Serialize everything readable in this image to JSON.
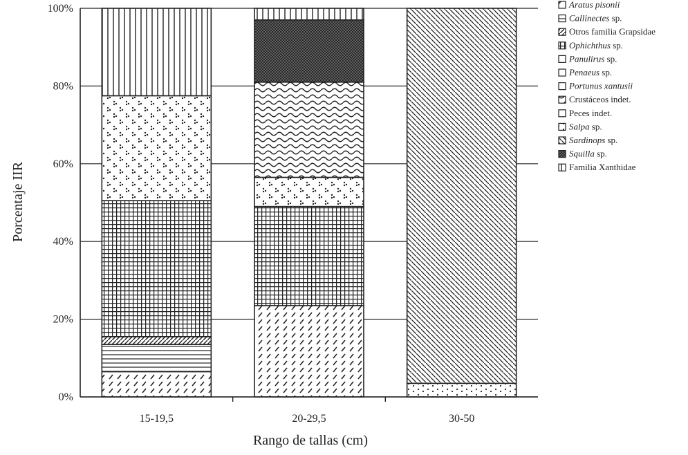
{
  "chart_data": {
    "type": "bar",
    "stacked": true,
    "title": "",
    "xlabel": "Rango de tallas (cm)",
    "ylabel": "Porcentaje IIR",
    "ylim": [
      0,
      100
    ],
    "ytick_labels": [
      "0%",
      "20%",
      "40%",
      "60%",
      "80%",
      "100%"
    ],
    "grid": "horizontal",
    "legend_position": "right",
    "categories": [
      "15-19,5",
      "20-29,5",
      "30-50"
    ],
    "series": [
      {
        "name": "Aratus pisonii",
        "italic_part": "Aratus pisonii",
        "suffix": "",
        "pattern": "dashes",
        "values": [
          6.5,
          23.5,
          0
        ]
      },
      {
        "name": "Callinectes sp.",
        "italic_part": "Callinectes",
        "suffix": " sp.",
        "pattern": "hlines",
        "values": [
          7.0,
          0,
          0
        ]
      },
      {
        "name": "Otros familia Grapsidae",
        "italic_part": "",
        "suffix": "Otros familia Grapsidae",
        "pattern": "diag",
        "values": [
          2.0,
          0,
          0
        ]
      },
      {
        "name": "Ophichthus sp.",
        "italic_part": "Ophichthus",
        "suffix": " sp.",
        "pattern": "grid",
        "values": [
          35.0,
          25.5,
          0
        ]
      },
      {
        "name": "Panulirus sp.",
        "italic_part": "Panulirus",
        "suffix": " sp.",
        "pattern": "dots",
        "values": [
          27.0,
          7.5,
          0
        ]
      },
      {
        "name": "Penaeus sp.",
        "italic_part": "Penaeus",
        "suffix": " sp.",
        "pattern": "none",
        "values": [
          0,
          0,
          0
        ]
      },
      {
        "name": "Portunus xantusii",
        "italic_part": "Portunus xantusii",
        "suffix": "",
        "pattern": "none",
        "values": [
          0,
          0,
          0
        ]
      },
      {
        "name": "Crustáceos indet.",
        "italic_part": "",
        "suffix": "Crustáceos indet.",
        "pattern": "waves",
        "values": [
          0,
          24.5,
          0
        ]
      },
      {
        "name": "Peces indet.",
        "italic_part": "",
        "suffix": "Peces indet.",
        "pattern": "none",
        "values": [
          0,
          0,
          0
        ]
      },
      {
        "name": "Salpa sp.",
        "italic_part": "Salpa",
        "suffix": " sp.",
        "pattern": "sparsedots",
        "values": [
          0,
          0,
          3.5
        ]
      },
      {
        "name": "Sardinops sp.",
        "italic_part": "Sardinops",
        "suffix": " sp.",
        "pattern": "diagdense",
        "values": [
          0,
          0,
          96.5
        ]
      },
      {
        "name": "Squilla sp.",
        "italic_part": "Squilla",
        "suffix": " sp.",
        "pattern": "crosshatch",
        "values": [
          0,
          16.0,
          0
        ]
      },
      {
        "name": "Familia Xanthidae",
        "italic_part": "",
        "suffix": "Familia Xanthidae",
        "pattern": "vlines",
        "values": [
          22.5,
          3.0,
          0
        ]
      }
    ]
  }
}
